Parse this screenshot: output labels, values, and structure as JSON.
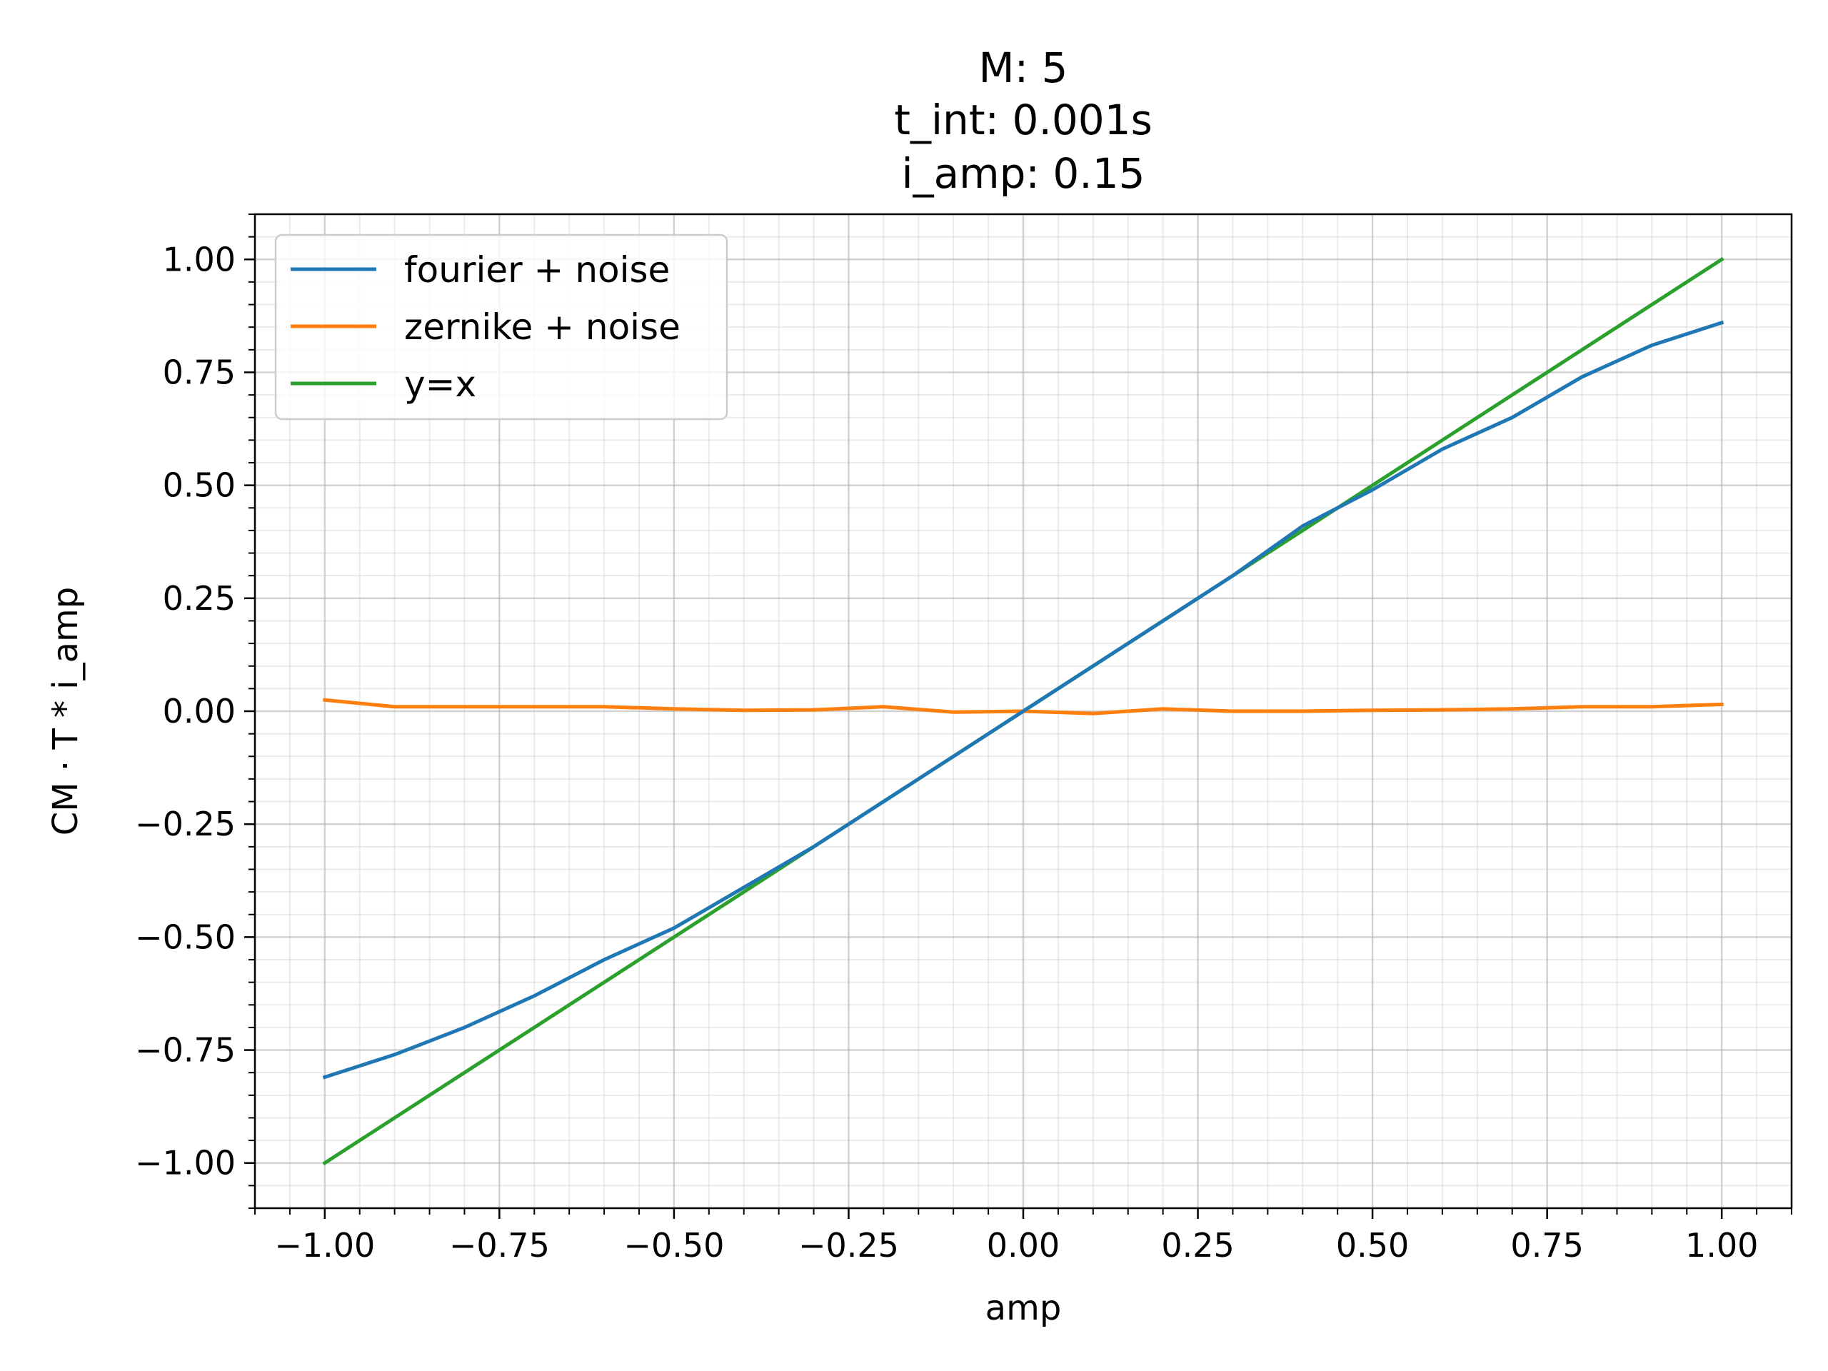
{
  "chart_data": {
    "type": "line",
    "title_lines": [
      "M: 5",
      "t_int: 0.001s",
      "i_amp: 0.15"
    ],
    "xlabel": "amp",
    "ylabel": "CM · T * i_amp",
    "xlim": [
      -1.1,
      1.1
    ],
    "ylim": [
      -1.1,
      1.1
    ],
    "x_ticks": [
      -1.0,
      -0.75,
      -0.5,
      -0.25,
      0.0,
      0.25,
      0.5,
      0.75,
      1.0
    ],
    "x_tick_labels": [
      "−1.00",
      "−0.75",
      "−0.50",
      "−0.25",
      "0.00",
      "0.25",
      "0.50",
      "0.75",
      "1.00"
    ],
    "y_ticks": [
      -1.0,
      -0.75,
      -0.5,
      -0.25,
      0.0,
      0.25,
      0.5,
      0.75,
      1.0
    ],
    "y_tick_labels": [
      "−1.00",
      "−0.75",
      "−0.50",
      "−0.25",
      "0.00",
      "0.25",
      "0.50",
      "0.75",
      "1.00"
    ],
    "minor_tick_step": 0.05,
    "grid": "major and minor",
    "legend_position": "upper-left",
    "series": [
      {
        "name": "fourier + noise",
        "color": "#1f77b4",
        "x": [
          -1.0,
          -0.9,
          -0.8,
          -0.7,
          -0.6,
          -0.5,
          -0.4,
          -0.3,
          -0.2,
          -0.1,
          0.0,
          0.1,
          0.2,
          0.3,
          0.4,
          0.5,
          0.6,
          0.7,
          0.8,
          0.9,
          1.0
        ],
        "y": [
          -0.81,
          -0.76,
          -0.7,
          -0.63,
          -0.55,
          -0.48,
          -0.39,
          -0.3,
          -0.2,
          -0.1,
          0.0,
          0.1,
          0.2,
          0.3,
          0.41,
          0.49,
          0.58,
          0.65,
          0.74,
          0.81,
          0.86
        ]
      },
      {
        "name": "zernike + noise",
        "color": "#ff7f0e",
        "x": [
          -1.0,
          -0.9,
          -0.8,
          -0.7,
          -0.6,
          -0.5,
          -0.4,
          -0.3,
          -0.2,
          -0.1,
          0.0,
          0.1,
          0.2,
          0.3,
          0.4,
          0.5,
          0.6,
          0.7,
          0.8,
          0.9,
          1.0
        ],
        "y": [
          0.025,
          0.01,
          0.01,
          0.01,
          0.01,
          0.005,
          0.002,
          0.003,
          0.01,
          -0.002,
          0.0,
          -0.005,
          0.005,
          0.0,
          0.0,
          0.002,
          0.003,
          0.005,
          0.01,
          0.01,
          0.015
        ]
      },
      {
        "name": "y=x",
        "color": "#2ca02c",
        "x": [
          -1.0,
          1.0
        ],
        "y": [
          -1.0,
          1.0
        ]
      }
    ]
  }
}
